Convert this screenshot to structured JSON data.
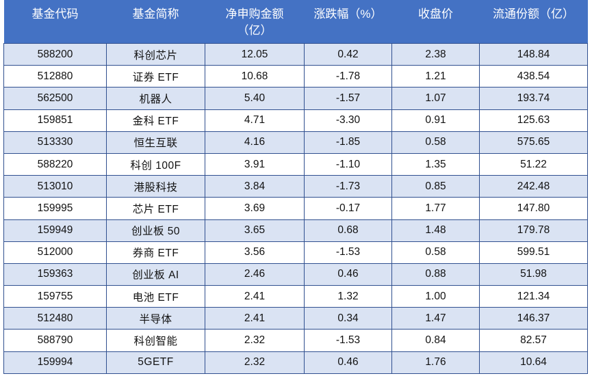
{
  "table": {
    "headers": [
      "基金代码",
      "基金简称",
      "净申购金额\n（亿）",
      "涨跌幅（%）",
      "收盘价",
      "流通份额（亿）"
    ],
    "rows": [
      [
        "588200",
        "科创芯片",
        "12.05",
        "0.42",
        "2.38",
        "148.84"
      ],
      [
        "512880",
        "证券 ETF",
        "10.68",
        "-1.78",
        "1.21",
        "438.54"
      ],
      [
        "562500",
        "机器人",
        "5.40",
        "-1.57",
        "1.07",
        "193.74"
      ],
      [
        "159851",
        "金科 ETF",
        "4.71",
        "-3.30",
        "0.91",
        "125.63"
      ],
      [
        "513330",
        "恒生互联",
        "4.16",
        "-1.85",
        "0.58",
        "575.65"
      ],
      [
        "588220",
        "科创 100F",
        "3.91",
        "-1.10",
        "1.35",
        "51.22"
      ],
      [
        "513010",
        "港股科技",
        "3.84",
        "-1.73",
        "0.85",
        "242.48"
      ],
      [
        "159995",
        "芯片 ETF",
        "3.69",
        "-0.17",
        "1.77",
        "147.80"
      ],
      [
        "159949",
        "创业板 50",
        "3.65",
        "0.68",
        "1.48",
        "179.78"
      ],
      [
        "512000",
        "券商 ETF",
        "3.56",
        "-1.53",
        "0.58",
        "599.51"
      ],
      [
        "159363",
        "创业板 AI",
        "2.46",
        "0.46",
        "0.88",
        "51.98"
      ],
      [
        "159755",
        "电池 ETF",
        "2.41",
        "1.32",
        "1.00",
        "121.34"
      ],
      [
        "512480",
        "半导体",
        "2.41",
        "0.34",
        "1.47",
        "146.37"
      ],
      [
        "588790",
        "科创智能",
        "2.32",
        "-1.53",
        "0.84",
        "82.57"
      ],
      [
        "159994",
        "5GETF",
        "2.32",
        "0.46",
        "1.76",
        "10.64"
      ]
    ]
  },
  "colors": {
    "header_bg": "#4472c4",
    "header_text": "#ffffff",
    "band_row_bg": "#dae3f3",
    "plain_row_bg": "#ffffff",
    "grid_line": "#2f4f8f"
  }
}
